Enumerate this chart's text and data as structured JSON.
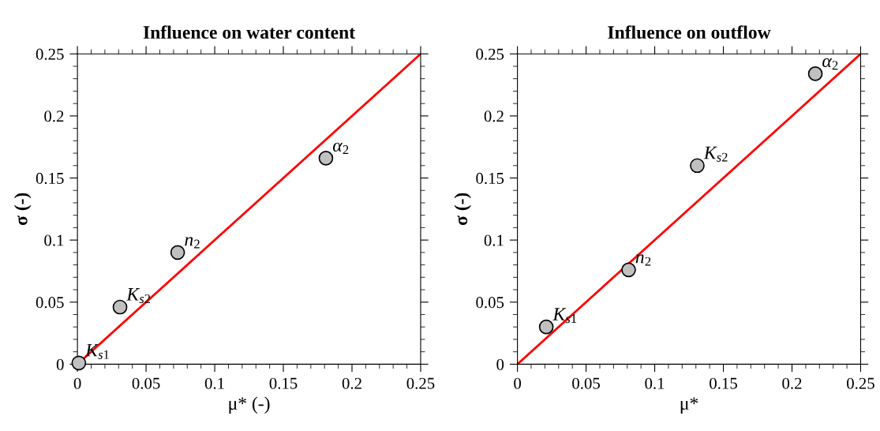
{
  "chart_data": [
    {
      "type": "scatter",
      "title": "Influence on water content",
      "xlabel": "μ* (-)",
      "ylabel": "σ (-)",
      "xlim": [
        0,
        0.25
      ],
      "ylim": [
        0,
        0.25
      ],
      "xticks": [
        0,
        0.05,
        0.1,
        0.15,
        0.2,
        0.25
      ],
      "yticks": [
        0,
        0.05,
        0.1,
        0.15,
        0.2,
        0.25
      ],
      "grid": false,
      "marker": "circle",
      "series": [
        {
          "type": "line",
          "color": "#ff0000",
          "x": [
            0,
            0.25
          ],
          "values": [
            0,
            0.25
          ],
          "line_style": "solid",
          "marker": "none"
        },
        {
          "color": "#c0c0c0",
          "x": [
            0.001,
            0.031,
            0.073,
            0.181
          ],
          "values": [
            0.001,
            0.046,
            0.09,
            0.166
          ]
        }
      ],
      "annotations": [
        {
          "text": "K$_{s1}$",
          "x": 0.001,
          "y": 0.001
        },
        {
          "text": "K$_{s2}$",
          "x": 0.031,
          "y": 0.046
        },
        {
          "text": "n$_{2}$",
          "x": 0.073,
          "y": 0.09
        },
        {
          "text": "α$_{2}$",
          "x": 0.181,
          "y": 0.166
        }
      ]
    },
    {
      "type": "scatter",
      "title": "Influence on outflow",
      "xlabel": "μ*",
      "ylabel": "σ (-)",
      "xlim": [
        0,
        0.25
      ],
      "ylim": [
        0,
        0.25
      ],
      "xticks": [
        0,
        0.05,
        0.1,
        0.15,
        0.2,
        0.25
      ],
      "yticks": [
        0,
        0.05,
        0.1,
        0.15,
        0.2,
        0.25
      ],
      "grid": false,
      "marker": "circle",
      "series": [
        {
          "type": "line",
          "color": "#ff0000",
          "x": [
            0,
            0.25
          ],
          "values": [
            0,
            0.25
          ],
          "line_style": "solid",
          "marker": "none"
        },
        {
          "color": "#c0c0c0",
          "x": [
            0.021,
            0.081,
            0.131,
            0.217
          ],
          "values": [
            0.03,
            0.076,
            0.16,
            0.234
          ]
        }
      ],
      "annotations": [
        {
          "text": "K$_{s1}$",
          "x": 0.021,
          "y": 0.03
        },
        {
          "text": "n$_{2}$",
          "x": 0.081,
          "y": 0.076
        },
        {
          "text": "K$_{s2}$",
          "x": 0.131,
          "y": 0.16
        },
        {
          "text": "α$_{2}$",
          "x": 0.217,
          "y": 0.234
        }
      ]
    }
  ]
}
